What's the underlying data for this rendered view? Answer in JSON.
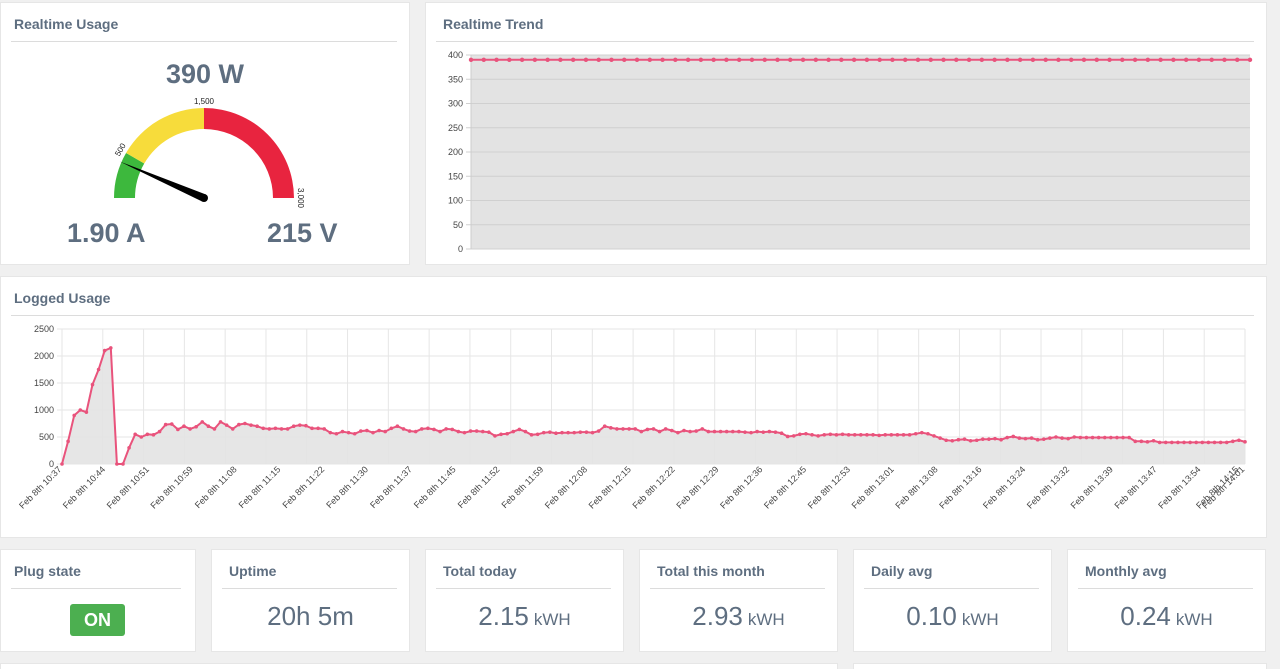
{
  "realtime_usage": {
    "title": "Realtime Usage",
    "power": "390 W",
    "current": "1.90 A",
    "voltage": "215 V",
    "gauge": {
      "min": 0,
      "max": 3000,
      "value": 390,
      "tick_labels": [
        "500",
        "1,500",
        "3,000"
      ],
      "bands": [
        {
          "from": 0,
          "to": 500,
          "color": "#3db83d"
        },
        {
          "from": 500,
          "to": 1500,
          "color": "#f7dc3b"
        },
        {
          "from": 1500,
          "to": 3000,
          "color": "#e8243f"
        }
      ]
    }
  },
  "realtime_trend": {
    "title": "Realtime Trend"
  },
  "logged_usage": {
    "title": "Logged Usage"
  },
  "stats": {
    "plug_state": {
      "title": "Plug state",
      "value": "ON"
    },
    "uptime": {
      "title": "Uptime",
      "value": "20h 5m"
    },
    "total_today": {
      "title": "Total today",
      "value": "2.15",
      "unit": "kWH"
    },
    "total_month": {
      "title": "Total this month",
      "value": "2.93",
      "unit": "kWH"
    },
    "daily_avg": {
      "title": "Daily avg",
      "value": "0.10",
      "unit": "kWH"
    },
    "monthly_avg": {
      "title": "Monthly avg",
      "value": "0.24",
      "unit": "kWH"
    }
  },
  "colors": {
    "accent": "#e9537c",
    "fill": "#e3e3e3",
    "on_badge": "#4caf50",
    "title_text": "#5e6e80"
  },
  "chart_data": [
    {
      "type": "line",
      "title": "Realtime Trend",
      "ylim": [
        0,
        400
      ],
      "y_ticks": [
        0,
        50,
        100,
        150,
        200,
        250,
        300,
        350,
        400
      ],
      "grid": true,
      "series": [
        {
          "values": [
            390,
            390,
            390,
            390,
            390,
            390,
            390,
            390,
            390,
            390,
            390,
            390,
            390,
            390,
            390,
            390,
            390,
            390,
            390,
            390,
            390,
            390,
            390,
            390,
            390,
            390,
            390,
            390,
            390,
            390,
            390,
            390,
            390,
            390,
            390,
            390,
            390,
            390,
            390,
            390,
            390,
            390,
            390,
            390,
            390,
            390,
            390,
            390,
            390,
            390,
            390,
            390,
            390,
            390,
            390,
            390,
            390,
            390,
            390,
            390,
            390,
            390
          ]
        }
      ]
    },
    {
      "type": "area",
      "title": "Logged Usage",
      "ylim": [
        0,
        2500
      ],
      "y_ticks": [
        0,
        500,
        1000,
        1500,
        2000,
        2500
      ],
      "grid": true,
      "x_tick_labels": [
        "Feb 8th 10:37",
        "Feb 8th 10:44",
        "Feb 8th 10:51",
        "Feb 8th 10:59",
        "Feb 8th 11:08",
        "Feb 8th 11:15",
        "Feb 8th 11:22",
        "Feb 8th 11:30",
        "Feb 8th 11:37",
        "Feb 8th 11:45",
        "Feb 8th 11:52",
        "Feb 8th 11:59",
        "Feb 8th 12:08",
        "Feb 8th 12:15",
        "Feb 8th 12:22",
        "Feb 8th 12:29",
        "Feb 8th 12:36",
        "Feb 8th 12:45",
        "Feb 8th 12:53",
        "Feb 8th 13:01",
        "Feb 8th 13:08",
        "Feb 8th 13:16",
        "Feb 8th 13:24",
        "Feb 8th 13:32",
        "Feb 8th 13:39",
        "Feb 8th 13:47",
        "Feb 8th 13:54",
        "Feb 8th 14:01",
        "Feb 8th 14:15"
      ],
      "series": [
        {
          "values": [
            0,
            420,
            900,
            1000,
            960,
            1470,
            1750,
            2100,
            2150,
            0,
            0,
            300,
            550,
            500,
            550,
            540,
            600,
            730,
            740,
            640,
            700,
            650,
            690,
            780,
            700,
            650,
            780,
            720,
            650,
            730,
            750,
            720,
            700,
            660,
            650,
            660,
            650,
            650,
            700,
            720,
            710,
            660,
            660,
            650,
            580,
            560,
            600,
            580,
            560,
            610,
            620,
            580,
            620,
            600,
            660,
            700,
            650,
            610,
            600,
            650,
            660,
            640,
            600,
            650,
            640,
            600,
            580,
            610,
            610,
            600,
            590,
            520,
            550,
            560,
            600,
            640,
            600,
            540,
            550,
            580,
            590,
            570,
            580,
            580,
            580,
            590,
            590,
            580,
            610,
            700,
            670,
            650,
            650,
            650,
            650,
            600,
            640,
            650,
            600,
            650,
            620,
            580,
            620,
            600,
            610,
            650,
            600,
            600,
            600,
            600,
            600,
            600,
            590,
            580,
            600,
            590,
            600,
            590,
            570,
            510,
            520,
            550,
            560,
            540,
            520,
            540,
            550,
            540,
            550,
            540,
            540,
            540,
            540,
            540,
            530,
            540,
            540,
            540,
            540,
            540,
            560,
            580,
            560,
            520,
            480,
            440,
            430,
            450,
            460,
            430,
            440,
            460,
            460,
            470,
            450,
            490,
            510,
            480,
            470,
            480,
            450,
            460,
            480,
            500,
            480,
            470,
            500,
            490,
            490,
            490,
            490,
            490,
            490,
            490,
            490,
            490,
            420,
            420,
            410,
            430,
            400,
            400,
            400,
            400,
            400,
            400,
            400,
            400,
            400,
            400,
            400,
            400,
            420,
            440,
            410
          ]
        }
      ]
    }
  ]
}
